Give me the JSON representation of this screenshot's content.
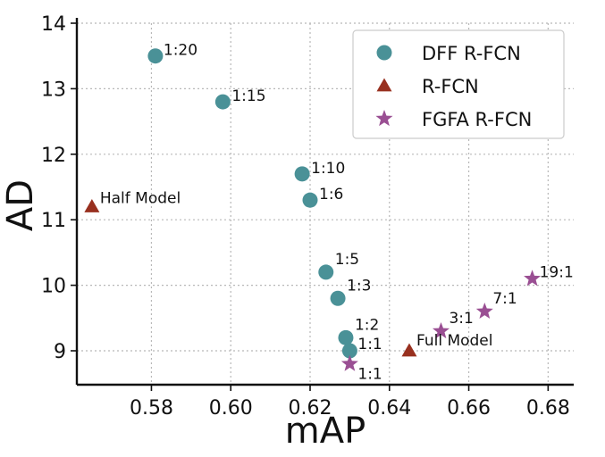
{
  "chart_data": {
    "type": "scatter",
    "xlabel": "mAP",
    "ylabel": "AD",
    "xlim": [
      0.562,
      0.685
    ],
    "ylim": [
      8.45,
      14.1
    ],
    "xticks": [
      "0.58",
      "0.60",
      "0.62",
      "0.64",
      "0.66",
      "0.68"
    ],
    "yticks": [
      "9",
      "10",
      "11",
      "12",
      "13",
      "14"
    ],
    "grid": true,
    "legend_position": "top-right",
    "series": [
      {
        "name": "DFF R-FCN",
        "marker": "circle",
        "color": "#4a9197",
        "points": [
          {
            "x": 0.581,
            "y": 13.5,
            "label": "1:20"
          },
          {
            "x": 0.598,
            "y": 12.8,
            "label": "1:15"
          },
          {
            "x": 0.618,
            "y": 11.7,
            "label": "1:10"
          },
          {
            "x": 0.62,
            "y": 11.3,
            "label": "1:6"
          },
          {
            "x": 0.624,
            "y": 10.2,
            "label": "1:5"
          },
          {
            "x": 0.627,
            "y": 9.8,
            "label": "1:3"
          },
          {
            "x": 0.629,
            "y": 9.2,
            "label": "1:2"
          },
          {
            "x": 0.63,
            "y": 9.0,
            "label": "1:1"
          }
        ]
      },
      {
        "name": "R-FCN",
        "marker": "triangle",
        "color": "#98301f",
        "points": [
          {
            "x": 0.565,
            "y": 11.2,
            "label": "Half Model"
          },
          {
            "x": 0.645,
            "y": 9.0,
            "label": "Full Model"
          }
        ]
      },
      {
        "name": "FGFA R-FCN",
        "marker": "star",
        "color": "#9a4f93",
        "points": [
          {
            "x": 0.63,
            "y": 8.8,
            "label": "1:1"
          },
          {
            "x": 0.653,
            "y": 9.3,
            "label": "3:1"
          },
          {
            "x": 0.664,
            "y": 9.6,
            "label": "7:1"
          },
          {
            "x": 0.676,
            "y": 10.1,
            "label": "19:1"
          }
        ]
      }
    ]
  }
}
